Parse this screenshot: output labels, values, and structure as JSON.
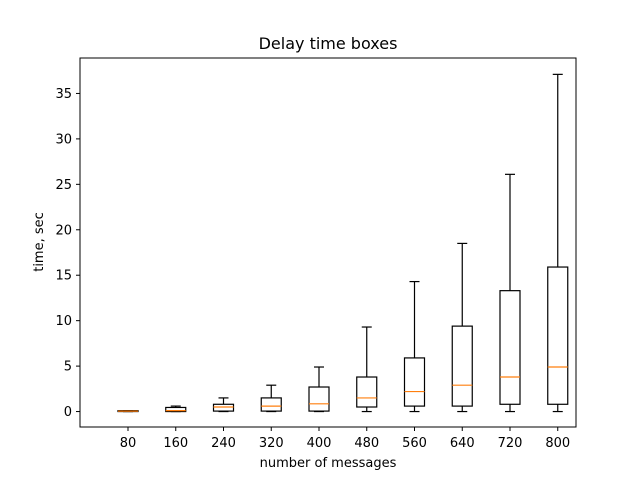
{
  "chart_data": {
    "type": "boxplot",
    "title": "Delay time boxes",
    "xlabel": "number of messages",
    "ylabel": "time, sec",
    "categories": [
      "80",
      "160",
      "240",
      "320",
      "400",
      "480",
      "560",
      "640",
      "720",
      "800"
    ],
    "boxes": [
      {
        "whisker_low": 0.0,
        "q1": 0.0,
        "median": 0.05,
        "q3": 0.1,
        "whisker_high": 0.1
      },
      {
        "whisker_low": 0.0,
        "q1": 0.0,
        "median": 0.1,
        "q3": 0.45,
        "whisker_high": 0.6
      },
      {
        "whisker_low": 0.0,
        "q1": 0.05,
        "median": 0.5,
        "q3": 0.8,
        "whisker_high": 1.5
      },
      {
        "whisker_low": 0.0,
        "q1": 0.05,
        "median": 0.6,
        "q3": 1.5,
        "whisker_high": 2.9
      },
      {
        "whisker_low": 0.0,
        "q1": 0.05,
        "median": 0.85,
        "q3": 2.7,
        "whisker_high": 4.9
      },
      {
        "whisker_low": 0.0,
        "q1": 0.5,
        "median": 1.5,
        "q3": 3.8,
        "whisker_high": 9.3
      },
      {
        "whisker_low": 0.0,
        "q1": 0.6,
        "median": 2.2,
        "q3": 5.9,
        "whisker_high": 14.3
      },
      {
        "whisker_low": 0.0,
        "q1": 0.6,
        "median": 2.9,
        "q3": 9.4,
        "whisker_high": 18.5
      },
      {
        "whisker_low": 0.0,
        "q1": 0.8,
        "median": 3.8,
        "q3": 13.3,
        "whisker_high": 26.1
      },
      {
        "whisker_low": 0.0,
        "q1": 0.8,
        "median": 4.9,
        "q3": 15.9,
        "whisker_high": 37.1
      }
    ],
    "yticks": [
      0,
      5,
      10,
      15,
      20,
      25,
      30,
      35
    ],
    "ylim": [
      -1.7,
      38.9
    ],
    "grid": false,
    "colors": {
      "box": "#000000",
      "median": "#ff7f0e"
    }
  }
}
